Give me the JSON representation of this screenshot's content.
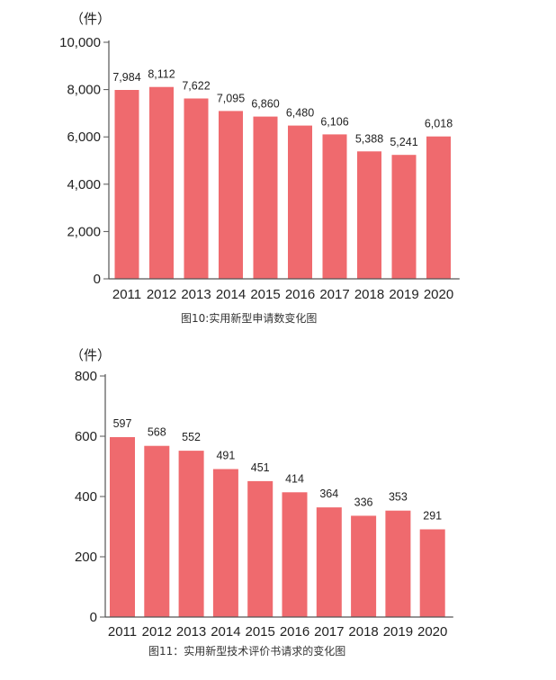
{
  "colors": {
    "bar": "#ef6a6e",
    "axis": "#555555"
  },
  "chart_data": [
    {
      "type": "bar",
      "unit": "（件）",
      "caption": "图10:实用新型申请数变化图",
      "categories": [
        "2011",
        "2012",
        "2013",
        "2014",
        "2015",
        "2016",
        "2017",
        "2018",
        "2019",
        "2020"
      ],
      "values": [
        7984,
        8112,
        7622,
        7095,
        6860,
        6480,
        6106,
        5388,
        5241,
        6018
      ],
      "data_labels": [
        "7,984",
        "8,112",
        "7,622",
        "7,095",
        "6,860",
        "6,480",
        "6,106",
        "5,388",
        "5,241",
        "6,018"
      ],
      "yticks": [
        0,
        2000,
        4000,
        6000,
        8000,
        10000
      ],
      "ytick_labels": [
        "0",
        "2,000",
        "4,000",
        "6,000",
        "8,000",
        "10,000"
      ],
      "ylim": [
        0,
        10000
      ],
      "grid": false,
      "legend": "none"
    },
    {
      "type": "bar",
      "unit": "（件）",
      "caption": "图11：实用新型技术评价书请求的变化图",
      "categories": [
        "2011",
        "2012",
        "2013",
        "2014",
        "2015",
        "2016",
        "2017",
        "2018",
        "2019",
        "2020"
      ],
      "values": [
        597,
        568,
        552,
        491,
        451,
        414,
        364,
        336,
        353,
        291
      ],
      "data_labels": [
        "597",
        "568",
        "552",
        "491",
        "451",
        "414",
        "364",
        "336",
        "353",
        "291"
      ],
      "yticks": [
        0,
        200,
        400,
        600,
        800
      ],
      "ytick_labels": [
        "0",
        "200",
        "400",
        "600",
        "800"
      ],
      "ylim": [
        0,
        800
      ],
      "grid": false,
      "legend": "none"
    }
  ]
}
